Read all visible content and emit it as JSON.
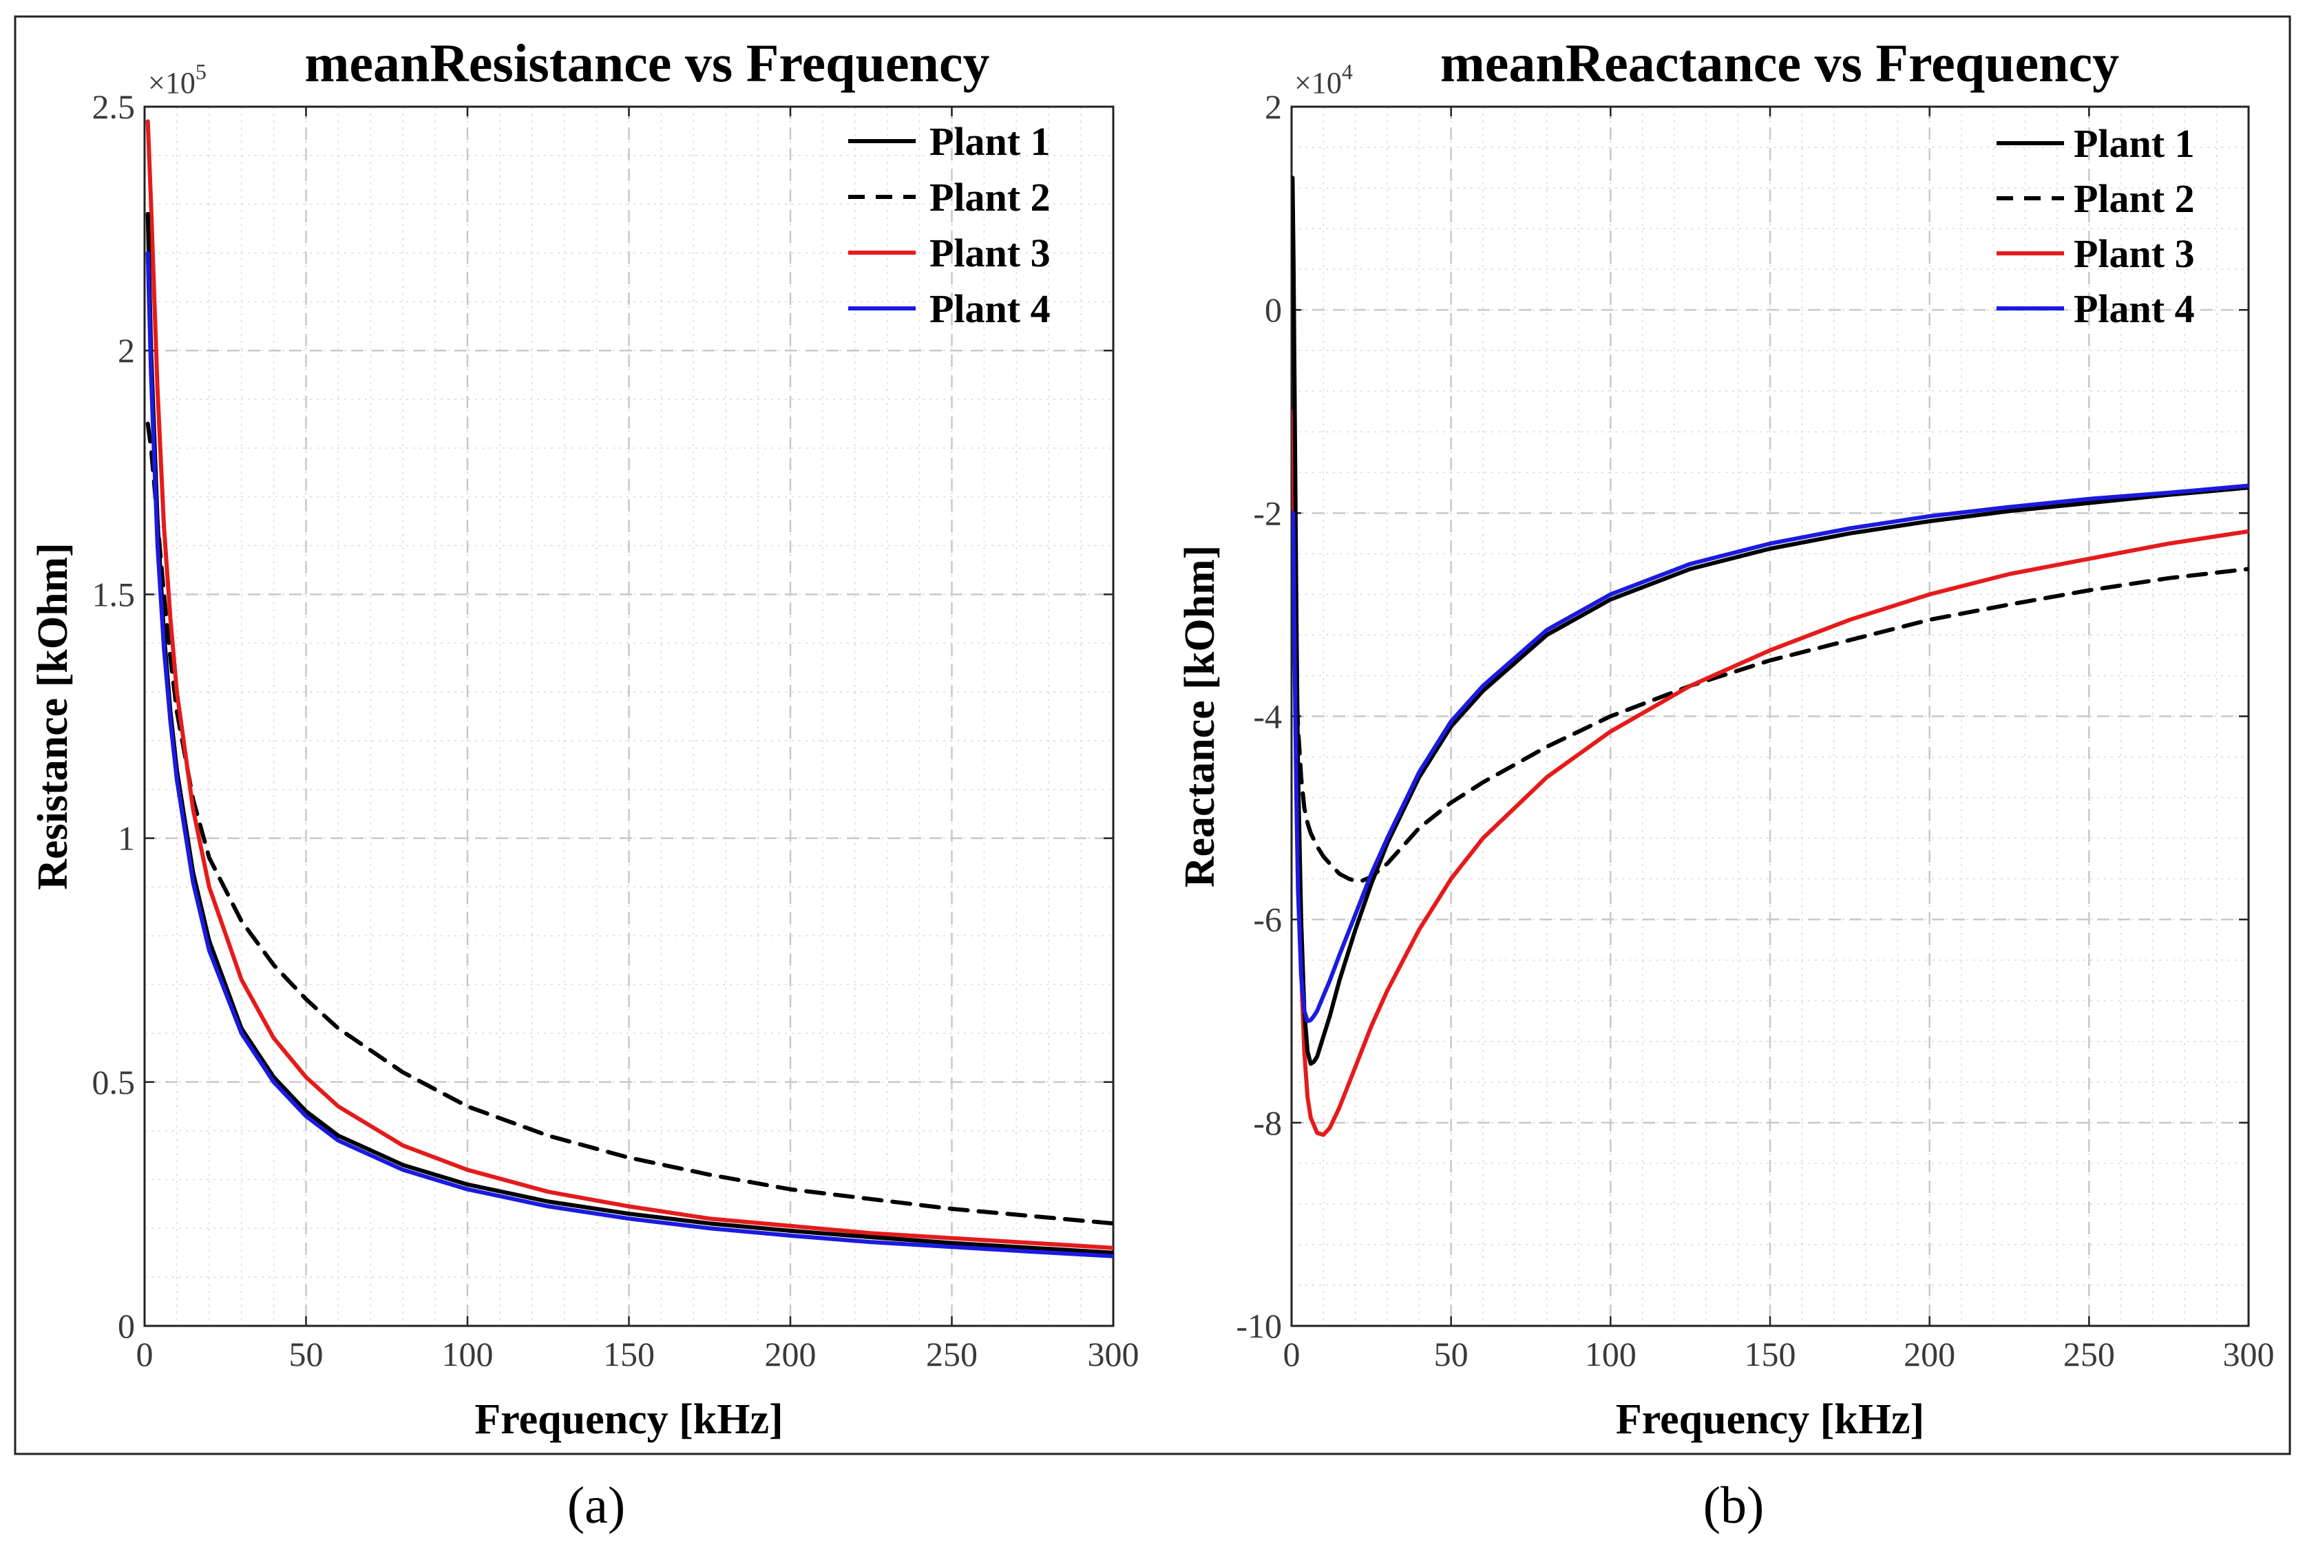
{
  "panel_labels": [
    "(a)",
    "(b)"
  ],
  "chart_data": [
    {
      "type": "line",
      "title": "meanResistance vs Frequency",
      "xlabel": "Frequency [kHz]",
      "ylabel": "Resistance [kOhm]",
      "y_exponent_base": "×10",
      "y_exponent_power": "5",
      "xlim": [
        0,
        300
      ],
      "ylim": [
        0,
        2.5
      ],
      "xticks": [
        0,
        50,
        100,
        150,
        200,
        250,
        300
      ],
      "xtick_labels": [
        "0",
        "50",
        "100",
        "150",
        "200",
        "250",
        "300"
      ],
      "yticks": [
        0,
        0.5,
        1,
        1.5,
        2,
        2.5
      ],
      "ytick_labels": [
        "0",
        "0.5",
        "1",
        "1.5",
        "2",
        "2.5"
      ],
      "grid": true,
      "legend_position": "top-right",
      "series": [
        {
          "name": "Plant 1",
          "color": "#000000",
          "dash": "solid",
          "x": [
            1,
            2,
            4,
            6,
            8,
            10,
            15,
            20,
            30,
            40,
            50,
            60,
            80,
            100,
            125,
            150,
            175,
            200,
            225,
            250,
            275,
            300
          ],
          "y": [
            2.28,
            2.0,
            1.65,
            1.42,
            1.26,
            1.14,
            0.93,
            0.79,
            0.61,
            0.51,
            0.44,
            0.39,
            0.33,
            0.29,
            0.255,
            0.23,
            0.21,
            0.195,
            0.182,
            0.17,
            0.16,
            0.15
          ]
        },
        {
          "name": "Plant 2",
          "color": "#000000",
          "dash": "dashed",
          "x": [
            1,
            2,
            4,
            6,
            8,
            10,
            15,
            20,
            30,
            40,
            50,
            60,
            80,
            100,
            125,
            150,
            175,
            200,
            225,
            250,
            275,
            300
          ],
          "y": [
            1.85,
            1.8,
            1.65,
            1.5,
            1.37,
            1.26,
            1.08,
            0.96,
            0.83,
            0.74,
            0.67,
            0.61,
            0.52,
            0.45,
            0.39,
            0.345,
            0.31,
            0.28,
            0.26,
            0.24,
            0.225,
            0.21
          ]
        },
        {
          "name": "Plant 3",
          "color": "#e51b1b",
          "dash": "solid",
          "x": [
            1,
            2,
            4,
            6,
            8,
            10,
            15,
            20,
            30,
            40,
            50,
            60,
            80,
            100,
            125,
            150,
            175,
            200,
            225,
            250,
            275,
            300
          ],
          "y": [
            2.47,
            2.3,
            1.92,
            1.64,
            1.45,
            1.3,
            1.06,
            0.9,
            0.71,
            0.59,
            0.51,
            0.45,
            0.37,
            0.32,
            0.275,
            0.245,
            0.22,
            0.205,
            0.19,
            0.18,
            0.17,
            0.16
          ]
        },
        {
          "name": "Plant 4",
          "color": "#1a1ae0",
          "dash": "solid",
          "x": [
            1,
            2,
            4,
            6,
            8,
            10,
            15,
            20,
            30,
            40,
            50,
            60,
            80,
            100,
            125,
            150,
            175,
            200,
            225,
            250,
            275,
            300
          ],
          "y": [
            2.2,
            1.95,
            1.6,
            1.39,
            1.24,
            1.12,
            0.91,
            0.77,
            0.6,
            0.5,
            0.43,
            0.38,
            0.32,
            0.28,
            0.245,
            0.22,
            0.2,
            0.185,
            0.172,
            0.162,
            0.152,
            0.143
          ]
        }
      ]
    },
    {
      "type": "line",
      "title": "meanReactance vs Frequency",
      "xlabel": "Frequency [kHz]",
      "ylabel": "Reactance [kOhm]",
      "y_exponent_base": "×10",
      "y_exponent_power": "4",
      "xlim": [
        0,
        300
      ],
      "ylim": [
        -10,
        2
      ],
      "xticks": [
        0,
        50,
        100,
        150,
        200,
        250,
        300
      ],
      "xtick_labels": [
        "0",
        "50",
        "100",
        "150",
        "200",
        "250",
        "300"
      ],
      "yticks": [
        -10,
        -8,
        -6,
        -4,
        -2,
        0,
        2
      ],
      "ytick_labels": [
        "-10",
        "-8",
        "-6",
        "-4",
        "-2",
        "0",
        "2"
      ],
      "grid": true,
      "legend_position": "top-right",
      "series": [
        {
          "name": "Plant 1",
          "color": "#000000",
          "dash": "solid",
          "x": [
            0.3,
            0.6,
            1,
            1.5,
            2,
            3,
            4,
            5,
            6,
            7,
            8,
            10,
            12,
            15,
            20,
            25,
            30,
            40,
            50,
            60,
            80,
            100,
            125,
            150,
            175,
            200,
            225,
            250,
            275,
            300
          ],
          "y": [
            1.3,
            0.5,
            -1.0,
            -3.0,
            -4.5,
            -6.0,
            -6.9,
            -7.3,
            -7.42,
            -7.4,
            -7.35,
            -7.15,
            -6.95,
            -6.6,
            -6.1,
            -5.65,
            -5.25,
            -4.6,
            -4.1,
            -3.75,
            -3.2,
            -2.85,
            -2.55,
            -2.35,
            -2.2,
            -2.08,
            -1.98,
            -1.9,
            -1.82,
            -1.75
          ]
        },
        {
          "name": "Plant 2",
          "color": "#000000",
          "dash": "dashed",
          "x": [
            0.5,
            1,
            2,
            3,
            4,
            5,
            6,
            8,
            10,
            12,
            15,
            18,
            20,
            22,
            25,
            30,
            40,
            50,
            60,
            80,
            100,
            125,
            150,
            175,
            200,
            225,
            250,
            275,
            300
          ],
          "y": [
            -2.2,
            -3.2,
            -4.1,
            -4.6,
            -4.9,
            -5.05,
            -5.15,
            -5.28,
            -5.38,
            -5.45,
            -5.55,
            -5.6,
            -5.62,
            -5.62,
            -5.58,
            -5.45,
            -5.1,
            -4.85,
            -4.65,
            -4.3,
            -4.0,
            -3.7,
            -3.45,
            -3.25,
            -3.05,
            -2.9,
            -2.76,
            -2.64,
            -2.55
          ]
        },
        {
          "name": "Plant 3",
          "color": "#e51b1b",
          "dash": "solid",
          "x": [
            0.5,
            1,
            1.5,
            2,
            3,
            4,
            5,
            6,
            8,
            10,
            12,
            15,
            20,
            25,
            30,
            40,
            50,
            60,
            80,
            100,
            125,
            150,
            175,
            200,
            225,
            250,
            275,
            300
          ],
          "y": [
            -1.0,
            -2.8,
            -4.2,
            -5.2,
            -6.5,
            -7.3,
            -7.75,
            -7.95,
            -8.1,
            -8.12,
            -8.05,
            -7.85,
            -7.45,
            -7.05,
            -6.7,
            -6.1,
            -5.6,
            -5.2,
            -4.6,
            -4.15,
            -3.7,
            -3.35,
            -3.05,
            -2.8,
            -2.6,
            -2.45,
            -2.3,
            -2.18
          ]
        },
        {
          "name": "Plant 4",
          "color": "#1a1ae0",
          "dash": "solid",
          "x": [
            0.5,
            1,
            1.5,
            2,
            3,
            4,
            5,
            6,
            7,
            8,
            10,
            12,
            15,
            20,
            25,
            30,
            40,
            50,
            60,
            80,
            100,
            125,
            150,
            175,
            200,
            225,
            250,
            275,
            300
          ],
          "y": [
            -2.0,
            -3.5,
            -4.8,
            -5.7,
            -6.55,
            -6.9,
            -7.0,
            -6.99,
            -6.95,
            -6.9,
            -6.75,
            -6.6,
            -6.35,
            -5.95,
            -5.55,
            -5.2,
            -4.55,
            -4.05,
            -3.7,
            -3.15,
            -2.8,
            -2.5,
            -2.3,
            -2.15,
            -2.03,
            -1.94,
            -1.86,
            -1.8,
            -1.73
          ]
        }
      ]
    }
  ]
}
